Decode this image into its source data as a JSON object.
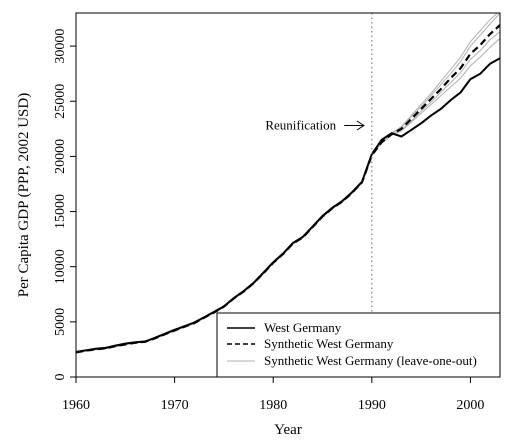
{
  "chart_data": {
    "type": "line",
    "title": "",
    "xlabel": "Year",
    "ylabel": "Per Capita GDP (PPP, 2002 USD)",
    "xlim": [
      1960,
      2003
    ],
    "ylim": [
      0,
      33000
    ],
    "xticks": [
      1960,
      1970,
      1980,
      1990,
      2000
    ],
    "yticks": [
      0,
      5000,
      10000,
      15000,
      20000,
      25000,
      30000
    ],
    "grid": false,
    "legend_position": "bottom-right",
    "x": [
      1960,
      1961,
      1962,
      1963,
      1964,
      1965,
      1966,
      1967,
      1968,
      1969,
      1970,
      1971,
      1972,
      1973,
      1974,
      1975,
      1976,
      1977,
      1978,
      1979,
      1980,
      1981,
      1982,
      1983,
      1984,
      1985,
      1986,
      1987,
      1988,
      1989,
      1990,
      1991,
      1992,
      1993,
      1994,
      1995,
      1996,
      1997,
      1998,
      1999,
      2000,
      2001,
      2002,
      2003
    ],
    "series": [
      {
        "name": "West Germany",
        "style": "solid",
        "color": "#000000",
        "values": [
          2280,
          2420,
          2560,
          2640,
          2850,
          3030,
          3150,
          3220,
          3550,
          3920,
          4280,
          4610,
          4940,
          5420,
          5900,
          6400,
          7150,
          7780,
          8520,
          9450,
          10400,
          11200,
          12150,
          12700,
          13650,
          14600,
          15350,
          15950,
          16750,
          17700,
          20200,
          21500,
          22100,
          21800,
          22400,
          23000,
          23700,
          24300,
          25100,
          25800,
          27000,
          27500,
          28400,
          28900
        ]
      },
      {
        "name": "Synthetic West Germany",
        "style": "dashed",
        "color": "#000000",
        "values": [
          2230,
          2380,
          2500,
          2600,
          2790,
          2960,
          3100,
          3190,
          3500,
          3860,
          4220,
          4560,
          4890,
          5380,
          5850,
          6380,
          7120,
          7750,
          8500,
          9400,
          10350,
          11150,
          12100,
          12650,
          13600,
          14550,
          15300,
          15900,
          16700,
          17650,
          20100,
          21300,
          22000,
          22500,
          23400,
          24300,
          25200,
          26100,
          27100,
          28000,
          29300,
          30100,
          31100,
          31900
        ]
      },
      {
        "name": "Synthetic West Germany (leave-one-out)",
        "style": "solid",
        "color": "#b0b0b0",
        "lines": [
          [
            2270,
            2410,
            2540,
            2630,
            2830,
            3010,
            3140,
            3230,
            3560,
            3940,
            4300,
            4640,
            4980,
            5460,
            5950,
            6450,
            7200,
            7830,
            8580,
            9500,
            10450,
            11250,
            12200,
            12750,
            13700,
            14650,
            15400,
            16000,
            16800,
            17750,
            20150,
            21350,
            22050,
            22650,
            23600,
            24500,
            25500,
            26500,
            27500,
            28600,
            30000,
            31000,
            32000,
            33000
          ],
          [
            2200,
            2350,
            2470,
            2570,
            2760,
            2930,
            3080,
            3170,
            3470,
            3830,
            4180,
            4520,
            4850,
            5340,
            5810,
            6340,
            7080,
            7700,
            8450,
            9350,
            10300,
            11100,
            12050,
            12600,
            13550,
            14500,
            15250,
            15850,
            16650,
            17600,
            20050,
            21200,
            21900,
            22300,
            23100,
            23900,
            24700,
            25500,
            26300,
            27100,
            28200,
            29000,
            29900,
            30700
          ],
          [
            2250,
            2390,
            2520,
            2610,
            2810,
            2980,
            3120,
            3210,
            3520,
            3890,
            4240,
            4590,
            4920,
            5400,
            5880,
            6400,
            7140,
            7770,
            8520,
            9430,
            10380,
            11180,
            12130,
            12680,
            13630,
            14580,
            15330,
            15930,
            16730,
            17680,
            20120,
            21400,
            22100,
            22700,
            23700,
            24700,
            25700,
            26800,
            27900,
            29000,
            30400,
            31400,
            32400,
            33200
          ],
          [
            2240,
            2370,
            2490,
            2590,
            2780,
            2950,
            3090,
            3180,
            3490,
            3850,
            4200,
            4540,
            4870,
            5360,
            5830,
            6360,
            7100,
            7730,
            8480,
            9380,
            10330,
            11130,
            12080,
            12630,
            13580,
            14530,
            15280,
            15880,
            16680,
            17630,
            20080,
            21250,
            21950,
            22400,
            23200,
            24100,
            24900,
            25800,
            26700,
            27600,
            28800,
            29600,
            30600,
            31300
          ]
        ]
      }
    ],
    "annotations": [
      {
        "type": "vline",
        "x": 1990,
        "style": "dotted",
        "color": "#808080"
      },
      {
        "type": "arrow",
        "text": "Reunification",
        "target": [
          1990,
          22800
        ]
      }
    ]
  }
}
